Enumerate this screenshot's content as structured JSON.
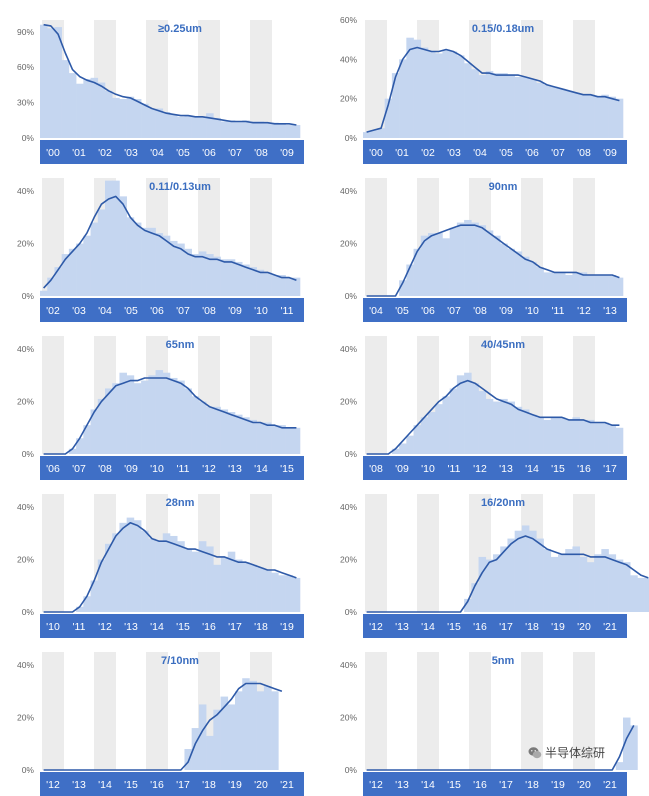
{
  "colors": {
    "band": "#3f6fc6",
    "bar": "#c5d6f0",
    "line": "#2e5aa8",
    "title": "#3b6ec0",
    "stripe": "#ececec",
    "tick": "#666666",
    "tickLabel": "#ffffff"
  },
  "watermark": {
    "text": "半导体综研",
    "icon": "wechat-icon"
  },
  "chart_data": [
    {
      "type": "bar",
      "title": "≥0.25um",
      "yticks": [
        "90%",
        "60%",
        "30%",
        "0%"
      ],
      "ylim": [
        0,
        100
      ],
      "categories": [
        "'00",
        "'01",
        "'02",
        "'03",
        "'04",
        "'05",
        "'06",
        "'07",
        "'08",
        "'09"
      ],
      "bars": [
        96,
        93,
        94,
        66,
        55,
        46,
        50,
        51,
        47,
        40,
        34,
        33,
        35,
        33,
        29,
        25,
        25,
        22,
        20,
        18,
        19,
        18,
        18,
        21,
        17,
        14,
        15,
        14,
        15,
        14,
        14,
        13,
        13,
        12,
        11,
        11
      ],
      "line": [
        96,
        95,
        88,
        72,
        58,
        52,
        49,
        47,
        44,
        40,
        37,
        35,
        34,
        31,
        28,
        25,
        23,
        21,
        20,
        19,
        19,
        18,
        18,
        17,
        16,
        15,
        14,
        14,
        14,
        13,
        13,
        13,
        12,
        12,
        12,
        11
      ]
    },
    {
      "type": "bar",
      "title": "0.15/0.18um",
      "yticks": [
        "60%",
        "40%",
        "20%",
        "0%"
      ],
      "ylim": [
        0,
        60
      ],
      "categories": [
        "'00",
        "'01",
        "'02",
        "'03",
        "'04",
        "'05",
        "'06",
        "'07",
        "'08",
        "'09"
      ],
      "bars": [
        3,
        4,
        5,
        20,
        33,
        40,
        51,
        50,
        46,
        44,
        43,
        45,
        44,
        42,
        38,
        35,
        32,
        34,
        33,
        33,
        32,
        31,
        31,
        30,
        28,
        27,
        26,
        25,
        24,
        23,
        22,
        22,
        21,
        22,
        21,
        20
      ],
      "line": [
        3,
        4,
        5,
        17,
        31,
        40,
        45,
        46,
        45,
        44,
        44,
        45,
        44,
        42,
        39,
        36,
        33,
        33,
        32,
        32,
        32,
        32,
        31,
        30,
        29,
        27,
        26,
        25,
        24,
        23,
        22,
        22,
        21,
        21,
        20,
        19
      ]
    },
    {
      "type": "bar",
      "title": "0.11/0.13um",
      "yticks": [
        "40%",
        "20%",
        "0%"
      ],
      "ylim": [
        0,
        45
      ],
      "categories": [
        "'02",
        "'03",
        "'04",
        "'05",
        "'06",
        "'07",
        "'08",
        "'09",
        "'10",
        "'11"
      ],
      "bars": [
        2,
        7,
        11,
        16,
        18,
        20,
        23,
        28,
        33,
        44,
        44,
        38,
        30,
        28,
        26,
        26,
        24,
        23,
        21,
        20,
        18,
        16,
        17,
        16,
        15,
        14,
        14,
        13,
        12,
        11,
        10,
        9,
        8,
        8,
        7,
        7
      ],
      "line": [
        3,
        6,
        10,
        14,
        17,
        20,
        24,
        30,
        35,
        37,
        38,
        35,
        30,
        27,
        25,
        24,
        23,
        21,
        19,
        18,
        16,
        15,
        15,
        14,
        14,
        13,
        13,
        12,
        11,
        10,
        9,
        9,
        8,
        7,
        7,
        6
      ]
    },
    {
      "type": "bar",
      "title": "90nm",
      "yticks": [
        "40%",
        "20%",
        "0%"
      ],
      "ylim": [
        0,
        45
      ],
      "categories": [
        "'04",
        "'05",
        "'06",
        "'07",
        "'08",
        "'09",
        "'10",
        "'11",
        "'12",
        "'13"
      ],
      "bars": [
        0,
        0,
        0,
        0,
        0,
        6,
        12,
        18,
        23,
        24,
        24,
        22,
        26,
        28,
        29,
        28,
        27,
        25,
        23,
        20,
        18,
        17,
        15,
        13,
        11,
        9,
        9,
        9,
        8,
        9,
        9,
        8,
        8,
        8,
        8,
        7
      ],
      "line": [
        0,
        0,
        0,
        0,
        0,
        5,
        11,
        17,
        21,
        23,
        24,
        25,
        26,
        27,
        27,
        27,
        26,
        24,
        22,
        20,
        18,
        16,
        14,
        13,
        11,
        10,
        9,
        9,
        9,
        9,
        8,
        8,
        8,
        8,
        8,
        7
      ]
    },
    {
      "type": "bar",
      "title": "65nm",
      "yticks": [
        "40%",
        "20%",
        "0%"
      ],
      "ylim": [
        0,
        45
      ],
      "categories": [
        "'06",
        "'07",
        "'08",
        "'09",
        "'10",
        "'11",
        "'12",
        "'13",
        "'14",
        "'15"
      ],
      "bars": [
        0,
        0,
        0,
        0,
        2,
        6,
        11,
        17,
        21,
        25,
        27,
        31,
        30,
        27,
        28,
        30,
        32,
        31,
        29,
        28,
        25,
        22,
        20,
        18,
        18,
        17,
        16,
        15,
        14,
        13,
        12,
        12,
        11,
        11,
        10,
        10
      ],
      "line": [
        0,
        0,
        0,
        0,
        2,
        6,
        11,
        16,
        20,
        23,
        26,
        27,
        28,
        28,
        29,
        29,
        29,
        29,
        28,
        27,
        25,
        22,
        20,
        18,
        17,
        16,
        15,
        14,
        13,
        12,
        12,
        11,
        11,
        10,
        10,
        10
      ]
    },
    {
      "type": "bar",
      "title": "40/45nm",
      "yticks": [
        "40%",
        "20%",
        "0%"
      ],
      "ylim": [
        0,
        45
      ],
      "categories": [
        "'08",
        "'09",
        "'10",
        "'11",
        "'12",
        "'13",
        "'14",
        "'15",
        "'16",
        "'17"
      ],
      "bars": [
        0,
        0,
        0,
        0,
        2,
        4,
        7,
        11,
        14,
        16,
        19,
        22,
        25,
        30,
        31,
        27,
        24,
        21,
        20,
        21,
        20,
        18,
        17,
        15,
        14,
        13,
        14,
        14,
        13,
        14,
        13,
        13,
        12,
        12,
        11,
        10
      ],
      "line": [
        0,
        0,
        0,
        0,
        2,
        5,
        8,
        11,
        14,
        17,
        20,
        22,
        25,
        27,
        28,
        27,
        25,
        23,
        21,
        20,
        19,
        17,
        16,
        15,
        14,
        14,
        14,
        14,
        13,
        13,
        13,
        12,
        12,
        12,
        11,
        11
      ]
    },
    {
      "type": "bar",
      "title": "28nm",
      "yticks": [
        "40%",
        "20%",
        "0%"
      ],
      "ylim": [
        0,
        45
      ],
      "categories": [
        "'10",
        "'11",
        "'12",
        "'13",
        "'14",
        "'15",
        "'16",
        "'17",
        "'18",
        "'19"
      ],
      "bars": [
        0,
        0,
        0,
        0,
        0,
        2,
        6,
        12,
        20,
        26,
        30,
        34,
        36,
        35,
        31,
        28,
        27,
        30,
        29,
        27,
        24,
        23,
        27,
        25,
        18,
        21,
        23,
        20,
        19,
        18,
        17,
        16,
        15,
        14,
        14,
        13
      ],
      "line": [
        0,
        0,
        0,
        0,
        0,
        2,
        6,
        12,
        19,
        24,
        29,
        32,
        34,
        33,
        31,
        28,
        27,
        27,
        26,
        25,
        24,
        24,
        23,
        22,
        21,
        21,
        20,
        19,
        19,
        18,
        17,
        16,
        16,
        15,
        14,
        13
      ]
    },
    {
      "type": "bar",
      "title": "16/20nm",
      "yticks": [
        "40%",
        "20%",
        "0%"
      ],
      "ylim": [
        0,
        45
      ],
      "categories": [
        "'12",
        "'13",
        "'14",
        "'15",
        "'16",
        "'17",
        "'18",
        "'19",
        "'20",
        "'21"
      ],
      "bars": [
        0,
        0,
        0,
        0,
        0,
        0,
        0,
        0,
        0,
        0,
        0,
        0,
        0,
        0,
        5,
        11,
        21,
        20,
        22,
        25,
        28,
        31,
        33,
        31,
        28,
        24,
        21,
        22,
        24,
        25,
        21,
        19,
        22,
        24,
        22,
        20,
        19,
        14,
        13,
        13
      ],
      "line": [
        0,
        0,
        0,
        0,
        0,
        0,
        0,
        0,
        0,
        0,
        0,
        0,
        0,
        0,
        4,
        10,
        15,
        19,
        20,
        23,
        26,
        28,
        29,
        28,
        26,
        24,
        23,
        22,
        22,
        22,
        22,
        21,
        21,
        21,
        20,
        19,
        18,
        16,
        14,
        13
      ]
    },
    {
      "type": "bar",
      "title": "7/10nm",
      "yticks": [
        "40%",
        "20%",
        "0%"
      ],
      "ylim": [
        0,
        45
      ],
      "categories": [
        "'12",
        "'13",
        "'14",
        "'15",
        "'16",
        "'17",
        "'18",
        "'19",
        "'20",
        "'21"
      ],
      "bars": [
        0,
        0,
        0,
        0,
        0,
        0,
        0,
        0,
        0,
        0,
        0,
        0,
        0,
        0,
        0,
        0,
        0,
        0,
        0,
        0,
        8,
        16,
        25,
        13,
        23,
        28,
        25,
        30,
        35,
        34,
        30,
        32,
        30,
        0
      ],
      "line": [
        0,
        0,
        0,
        0,
        0,
        0,
        0,
        0,
        0,
        0,
        0,
        0,
        0,
        0,
        0,
        0,
        0,
        0,
        0,
        0,
        3,
        10,
        15,
        19,
        21,
        24,
        27,
        31,
        33,
        33,
        33,
        32,
        31,
        30
      ]
    },
    {
      "type": "bar",
      "title": "5nm",
      "yticks": [
        "40%",
        "20%",
        "0%"
      ],
      "ylim": [
        0,
        45
      ],
      "categories": [
        "'12",
        "'13",
        "'14",
        "'15",
        "'16",
        "'17",
        "'18",
        "'19",
        "'20",
        "'21"
      ],
      "bars": [
        0,
        0,
        0,
        0,
        0,
        0,
        0,
        0,
        0,
        0,
        0,
        0,
        0,
        0,
        0,
        0,
        0,
        0,
        0,
        0,
        0,
        0,
        0,
        0,
        0,
        0,
        0,
        0,
        0,
        0,
        0,
        0,
        0,
        0,
        0,
        3,
        20,
        17
      ],
      "line": [
        0,
        0,
        0,
        0,
        0,
        0,
        0,
        0,
        0,
        0,
        0,
        0,
        0,
        0,
        0,
        0,
        0,
        0,
        0,
        0,
        0,
        0,
        0,
        0,
        0,
        0,
        0,
        0,
        0,
        0,
        0,
        0,
        0,
        0,
        0,
        5,
        12,
        17
      ]
    }
  ]
}
